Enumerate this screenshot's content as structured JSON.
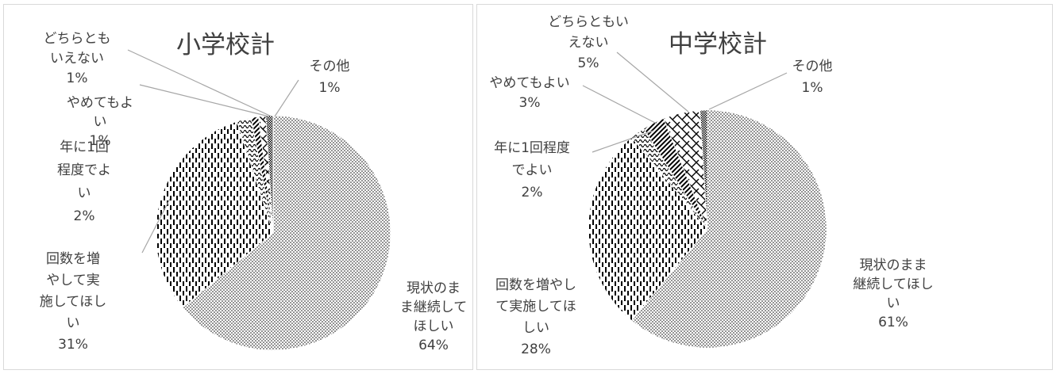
{
  "chart_data": [
    {
      "type": "pie",
      "title": "小学校計",
      "slices": [
        {
          "label": [
            "現状のま",
            "ま継続して",
            "ほしい"
          ],
          "pct": "64%",
          "value": 64,
          "pattern": "dots"
        },
        {
          "label": [
            "回数を増",
            "やして実",
            "施してほし",
            "い"
          ],
          "pct": "31%",
          "value": 31,
          "pattern": "dashes"
        },
        {
          "label": [
            "年に1回",
            "程度でよ",
            "い"
          ],
          "pct": "2%",
          "value": 2,
          "pattern": "wave"
        },
        {
          "label": [
            "やめてもよ",
            "い"
          ],
          "pct": "1%",
          "value": 1,
          "pattern": "diag"
        },
        {
          "label": [
            "どちらとも",
            "いえない"
          ],
          "pct": "1%",
          "value": 1,
          "pattern": "brick"
        },
        {
          "label": [
            "その他"
          ],
          "pct": "1%",
          "value": 1,
          "pattern": "dense"
        }
      ]
    },
    {
      "type": "pie",
      "title": "中学校計",
      "slices": [
        {
          "label": [
            "現状のまま",
            "継続してほし",
            "い"
          ],
          "pct": "61%",
          "value": 61,
          "pattern": "dots"
        },
        {
          "label": [
            "回数を増やし",
            "て実施してほ",
            "しい"
          ],
          "pct": "28%",
          "value": 28,
          "pattern": "dashes"
        },
        {
          "label": [
            "年に1回程度",
            "でよい"
          ],
          "pct": "2%",
          "value": 2,
          "pattern": "wave"
        },
        {
          "label": [
            "やめてもよい"
          ],
          "pct": "3%",
          "value": 3,
          "pattern": "diag"
        },
        {
          "label": [
            "どちらともい",
            "えない"
          ],
          "pct": "5%",
          "value": 5,
          "pattern": "brick"
        },
        {
          "label": [
            "その他"
          ],
          "pct": "1%",
          "value": 1,
          "pattern": "dense"
        }
      ]
    }
  ]
}
